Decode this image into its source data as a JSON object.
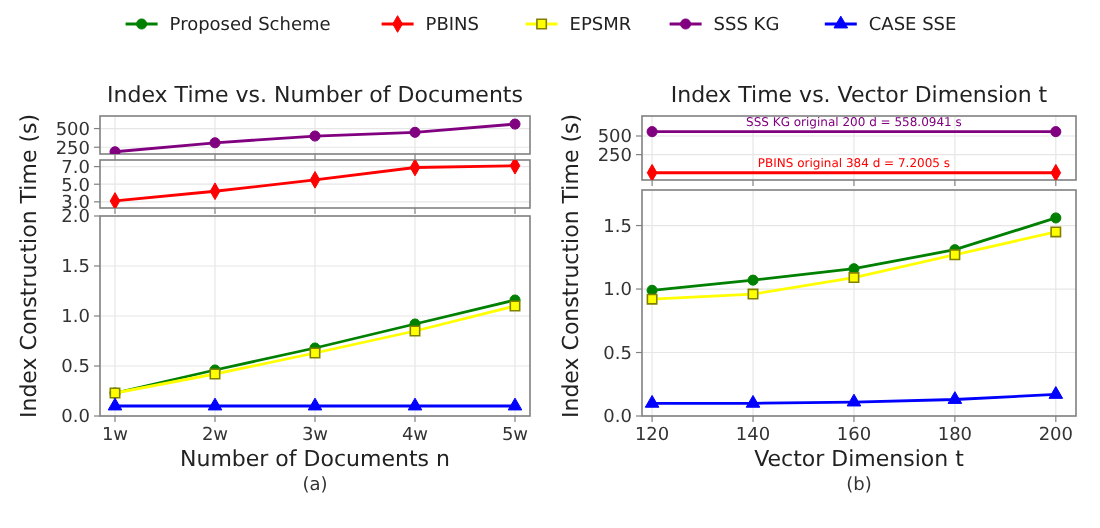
{
  "chart_data": [
    {
      "type": "line",
      "title": "Index Time vs. Number of Documents",
      "categories": [
        null,
        null,
        null,
        null,
        null
      ],
      "ylim": [
        160,
        668
      ],
      "yticks": [
        250,
        500
      ],
      "tick_labels": "y",
      "grid": true,
      "legend": "top",
      "series": [
        {
          "name": "Proposed Scheme",
          "color": "#008000",
          "marker": "circle",
          "values": [
            null,
            null,
            null,
            null,
            null
          ]
        },
        {
          "name": "PBINS",
          "color": "#ff0000",
          "marker": "diamond",
          "values": [
            null,
            null,
            null,
            null,
            null
          ]
        },
        {
          "name": "EPSMR",
          "color": "#ffff00",
          "marker": "square",
          "values": [
            null,
            null,
            null,
            null,
            null
          ]
        },
        {
          "name": "SSS KG",
          "color": "#800080",
          "marker": "circle",
          "values": [
            190,
            310,
            400,
            450,
            560
          ]
        },
        {
          "name": "CASE SSE",
          "color": "#0000ff",
          "marker": "triangle",
          "values": [
            null,
            null,
            null,
            null,
            null
          ]
        }
      ]
    },
    {
      "type": "line",
      "categories": [
        null,
        null,
        null,
        null,
        null
      ],
      "ylim": [
        2.3,
        7.75
      ],
      "yticks": [
        {
          "value": 3,
          "label": "3.0"
        },
        {
          "value": 5,
          "label": "5.0"
        },
        {
          "value": 7,
          "label": "7.0"
        }
      ],
      "tick_labels": "y",
      "grid": true,
      "series": [
        {
          "color": "#ff0000",
          "marker": "diamond",
          "values": [
            3.1,
            4.2,
            5.5,
            6.9,
            7.1
          ]
        }
      ]
    },
    {
      "type": "line",
      "xlabel": "Number of Documents n",
      "ylabel": "Index Construction Time (s)",
      "categories": [
        "1w",
        "2w",
        "3w",
        "4w",
        "5w"
      ],
      "ylim": [
        0,
        2
      ],
      "yticks": [
        {
          "value": 0,
          "label": "0.0"
        },
        0.5,
        {
          "value": 1,
          "label": "1.0"
        },
        1.5,
        {
          "value": 2,
          "label": "2.0"
        }
      ],
      "grid": true,
      "annotations": [
        "(a)"
      ],
      "series": [
        {
          "color": "#008000",
          "marker": "circle",
          "values": [
            0.23,
            0.46,
            0.68,
            0.92,
            1.16
          ]
        },
        {
          "color": "#ffff00",
          "marker": "square",
          "values": [
            0.23,
            0.42,
            0.63,
            0.85,
            1.1
          ]
        },
        {
          "color": "#0000ff",
          "marker": "triangle",
          "values": [
            0.1,
            0.1,
            0.1,
            0.1,
            0.1
          ]
        }
      ]
    },
    {
      "type": "line",
      "title": "Index Time vs. Vector Dimension t",
      "x": [
        120,
        200
      ],
      "xlim": [
        118,
        204
      ],
      "xticks": [
        120,
        140,
        160,
        180,
        200
      ],
      "ylim": [
        -90,
        768
      ],
      "yticks": [
        250,
        500
      ],
      "tick_labels": "y",
      "grid": true,
      "annotations": [
        {
          "text": "SSS KG original 200 d = 558.0941 s",
          "x": 160,
          "y": 558.0941
        },
        {
          "text": "PBINS original 384 d = 7.2005 s",
          "x": 160,
          "y": 7.2005
        }
      ],
      "series": [
        {
          "color": "#800080",
          "marker": "circle",
          "values": [
            558.0941,
            558.0941
          ]
        },
        {
          "color": "#ff0000",
          "marker": "diamond",
          "values": [
            7.2005,
            7.2005
          ]
        }
      ]
    },
    {
      "type": "line",
      "xlabel": "Vector Dimension t",
      "ylabel": "Index Construction Time (s)",
      "x": [
        120,
        140,
        160,
        180,
        200
      ],
      "xlim": [
        118,
        204
      ],
      "xticks": [
        120,
        140,
        160,
        180,
        200
      ],
      "ylim": [
        0,
        1.78
      ],
      "yticks": [
        {
          "value": 0,
          "label": "0.0"
        },
        0.5,
        {
          "value": 1,
          "label": "1.0"
        },
        1.5
      ],
      "grid": true,
      "annotations": [
        "(b)"
      ],
      "series": [
        {
          "color": "#008000",
          "marker": "circle",
          "values": [
            0.99,
            1.07,
            1.16,
            1.31,
            1.56
          ]
        },
        {
          "color": "#ffff00",
          "marker": "square",
          "values": [
            0.92,
            0.96,
            1.09,
            1.27,
            1.45
          ]
        },
        {
          "color": "#0000ff",
          "marker": "triangle",
          "values": [
            0.1,
            0.1,
            0.11,
            0.13,
            0.17
          ]
        }
      ]
    }
  ]
}
